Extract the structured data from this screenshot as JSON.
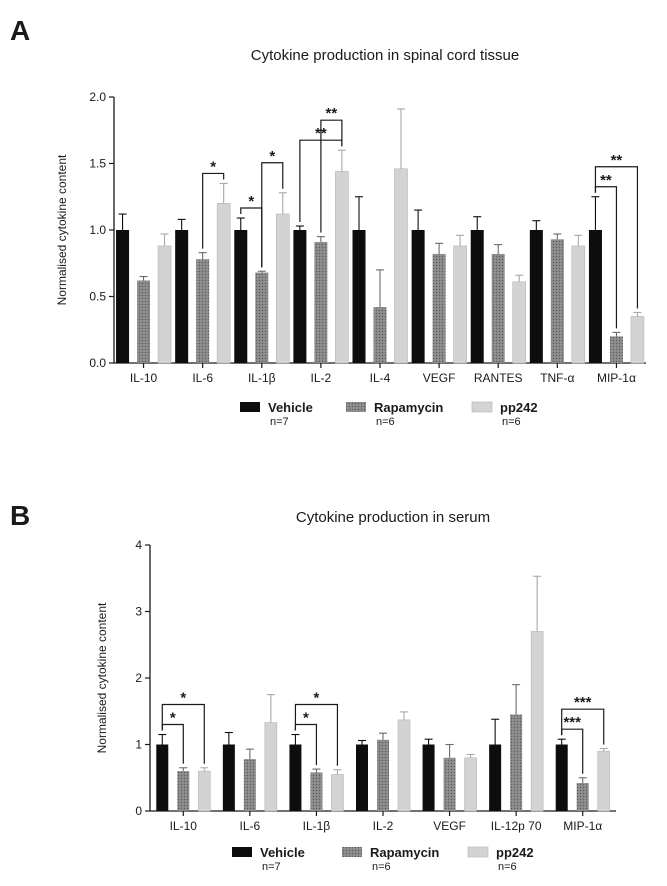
{
  "colors": {
    "vehicle": "#0d0d0d",
    "rapamycin": "#8f8f8f",
    "pp242": "#d3d3d3",
    "axis": "#1a1a1a"
  },
  "legend": [
    {
      "key": "vehicle",
      "name": "Vehicle",
      "n": "n=7"
    },
    {
      "key": "rapamycin",
      "name": "Rapamycin",
      "n": "n=6"
    },
    {
      "key": "pp242",
      "name": "pp242",
      "n": "n=6"
    }
  ],
  "chart_data": [
    {
      "panel": "A",
      "type": "bar",
      "title": "Cytokine production in spinal cord tissue",
      "ylabel": "Normalised cytokine content",
      "xlabel": "",
      "ylim": [
        0,
        2.0
      ],
      "yticks": [
        "0.0",
        "0.5",
        "1.0",
        "1.5",
        "2.0"
      ],
      "categories": [
        "IL-10",
        "IL-6",
        "IL-1β",
        "IL-2",
        "IL-4",
        "VEGF",
        "RANTES",
        "TNF-α",
        "MIP-1α"
      ],
      "series": [
        {
          "name": "Vehicle",
          "key": "vehicle",
          "values": [
            1.0,
            1.0,
            1.0,
            1.0,
            1.0,
            1.0,
            1.0,
            1.0,
            1.0
          ],
          "errors": [
            0.12,
            0.08,
            0.09,
            0.03,
            0.25,
            0.15,
            0.1,
            0.07,
            0.25
          ]
        },
        {
          "name": "Rapamycin",
          "key": "rapamycin",
          "values": [
            0.62,
            0.78,
            0.68,
            0.91,
            0.42,
            0.82,
            0.82,
            0.93,
            0.2
          ],
          "errors": [
            0.03,
            0.05,
            0.01,
            0.04,
            0.28,
            0.08,
            0.07,
            0.04,
            0.03
          ]
        },
        {
          "name": "pp242",
          "key": "pp242",
          "values": [
            0.88,
            1.2,
            1.12,
            1.44,
            1.46,
            0.88,
            0.61,
            0.88,
            0.35
          ],
          "errors": [
            0.09,
            0.15,
            0.16,
            0.16,
            0.45,
            0.08,
            0.05,
            0.08,
            0.03
          ]
        }
      ],
      "significance": [
        {
          "category": "IL-6",
          "from": 1,
          "to": 2,
          "label": "*"
        },
        {
          "category": "IL-1β",
          "from": 0,
          "to": 1,
          "label": "*"
        },
        {
          "category": "IL-1β",
          "from": 1,
          "to": 2,
          "label": "*"
        },
        {
          "category": "IL-2",
          "from": 0,
          "to": 2,
          "label": "**"
        },
        {
          "category": "IL-2",
          "from": 1,
          "to": 2,
          "label": "**"
        },
        {
          "category": "MIP-1α",
          "from": 0,
          "to": 1,
          "label": "**"
        },
        {
          "category": "MIP-1α",
          "from": 0,
          "to": 2,
          "label": "**"
        }
      ]
    },
    {
      "panel": "B",
      "type": "bar",
      "title": "Cytokine production in serum",
      "ylabel": "Normalised cytokine content",
      "xlabel": "",
      "ylim": [
        0,
        4
      ],
      "yticks": [
        "0",
        "1",
        "2",
        "3",
        "4"
      ],
      "categories": [
        "IL-10",
        "IL-6",
        "IL-1β",
        "IL-2",
        "VEGF",
        "IL-12p 70",
        "MIP-1α"
      ],
      "series": [
        {
          "name": "Vehicle",
          "key": "vehicle",
          "values": [
            1.0,
            1.0,
            1.0,
            1.0,
            1.0,
            1.0,
            1.0
          ],
          "errors": [
            0.15,
            0.18,
            0.15,
            0.06,
            0.08,
            0.38,
            0.08
          ]
        },
        {
          "name": "Rapamycin",
          "key": "rapamycin",
          "values": [
            0.6,
            0.78,
            0.58,
            1.07,
            0.8,
            1.45,
            0.42
          ],
          "errors": [
            0.05,
            0.15,
            0.05,
            0.1,
            0.2,
            0.45,
            0.08
          ]
        },
        {
          "name": "pp242",
          "key": "pp242",
          "values": [
            0.6,
            1.33,
            0.55,
            1.37,
            0.8,
            2.7,
            0.9
          ],
          "errors": [
            0.05,
            0.42,
            0.07,
            0.12,
            0.05,
            0.83,
            0.04
          ]
        }
      ],
      "significance": [
        {
          "category": "IL-10",
          "from": 0,
          "to": 1,
          "label": "*"
        },
        {
          "category": "IL-10",
          "from": 0,
          "to": 2,
          "label": "*"
        },
        {
          "category": "IL-1β",
          "from": 0,
          "to": 1,
          "label": "*"
        },
        {
          "category": "IL-1β",
          "from": 0,
          "to": 2,
          "label": "*"
        },
        {
          "category": "MIP-1α",
          "from": 0,
          "to": 1,
          "label": "***"
        },
        {
          "category": "MIP-1α",
          "from": 0,
          "to": 2,
          "label": "***"
        }
      ]
    }
  ]
}
